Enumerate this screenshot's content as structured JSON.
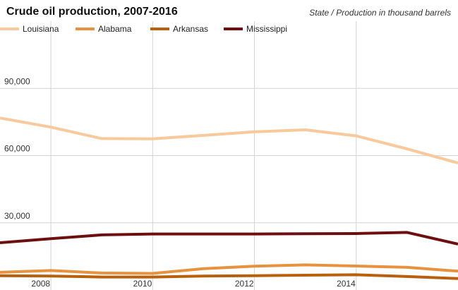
{
  "chart_data": {
    "type": "line",
    "title": "Crude oil production, 2007-2016",
    "subtitle": "State / Production in thousand barrels",
    "x": [
      2007,
      2008,
      2009,
      2010,
      2011,
      2012,
      2013,
      2014,
      2015,
      2016
    ],
    "xticks": [
      2008,
      2010,
      2012,
      2014
    ],
    "xlim": [
      2007,
      2016
    ],
    "ylim": [
      0,
      120000
    ],
    "yticks": [
      30000,
      60000,
      90000
    ],
    "ytick_labels": [
      "30,000",
      "60,000",
      "90,000"
    ],
    "grid": true,
    "legend_position": "top-left",
    "series": [
      {
        "name": "Louisiana",
        "color": "#f8c99a",
        "values": [
          76800,
          72700,
          67600,
          67500,
          69000,
          70600,
          71500,
          68800,
          63000,
          56700
        ]
      },
      {
        "name": "Alabama",
        "color": "#e6923e",
        "values": [
          7900,
          8700,
          7600,
          7400,
          9500,
          10600,
          11200,
          10700,
          10100,
          8400
        ]
      },
      {
        "name": "Arkansas",
        "color": "#b8600e",
        "values": [
          6400,
          6200,
          5800,
          5800,
          6200,
          6400,
          6600,
          6800,
          6000,
          5100
        ]
      },
      {
        "name": "Mississippi",
        "color": "#6e0f0f",
        "values": [
          21100,
          22900,
          24600,
          25000,
          25000,
          25000,
          25100,
          25200,
          25700,
          20500
        ]
      }
    ]
  }
}
